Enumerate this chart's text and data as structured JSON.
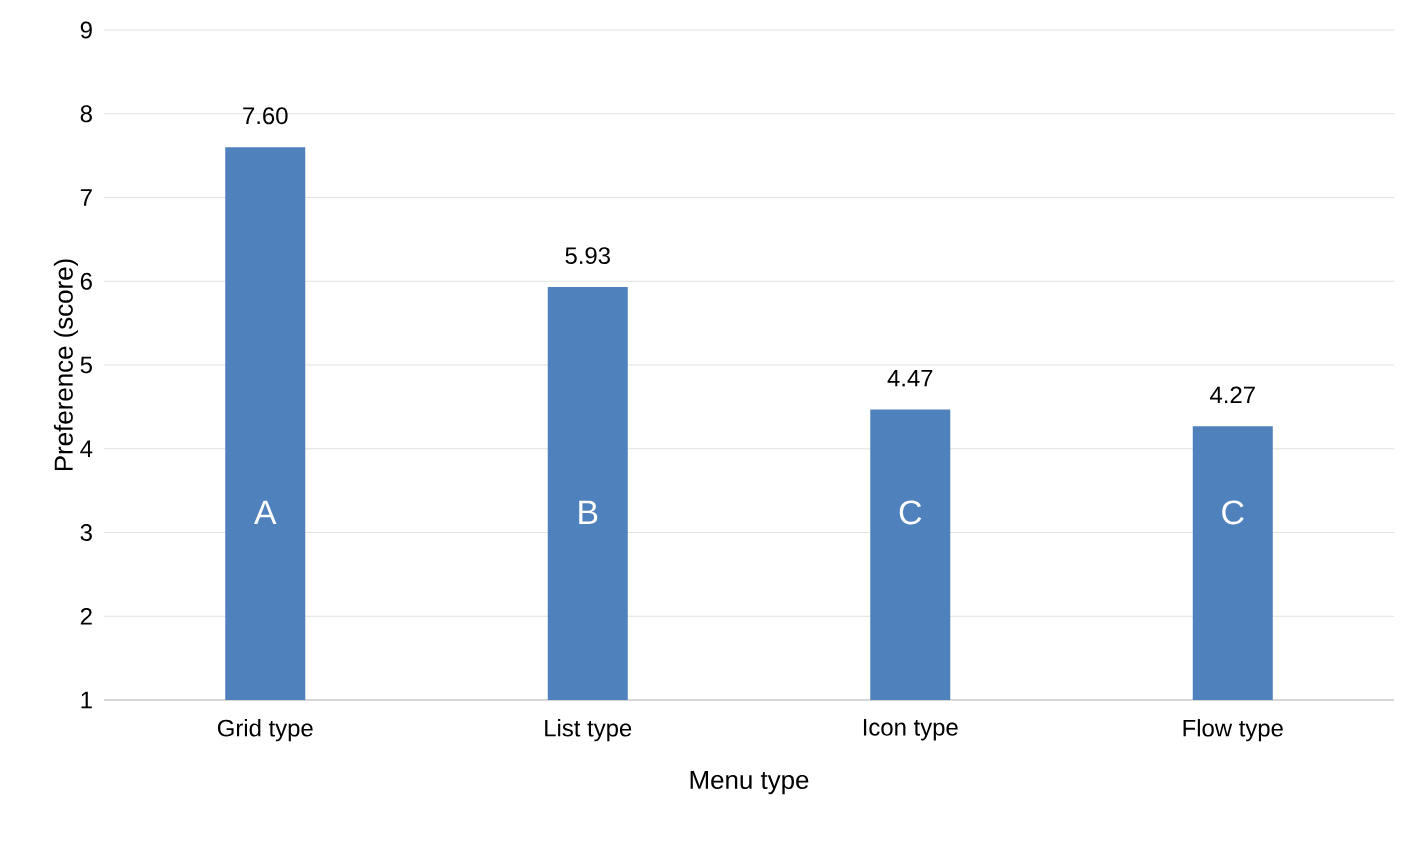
{
  "chart_data": {
    "type": "bar",
    "xlabel": "Menu type",
    "ylabel": "Preference (score)",
    "categories": [
      "Grid type",
      "List type",
      "Icon type",
      "Flow type"
    ],
    "values": [
      7.6,
      5.93,
      4.47,
      4.27
    ],
    "value_labels": [
      "7.60",
      "5.93",
      "4.47",
      "4.27"
    ],
    "color": "#4f81bd",
    "ylim": [
      1,
      9
    ],
    "yticks": [
      1,
      2,
      3,
      4,
      5,
      6,
      7,
      8,
      9
    ],
    "grid": "y",
    "annotations": [
      "A",
      "B",
      "C",
      "C"
    ]
  }
}
